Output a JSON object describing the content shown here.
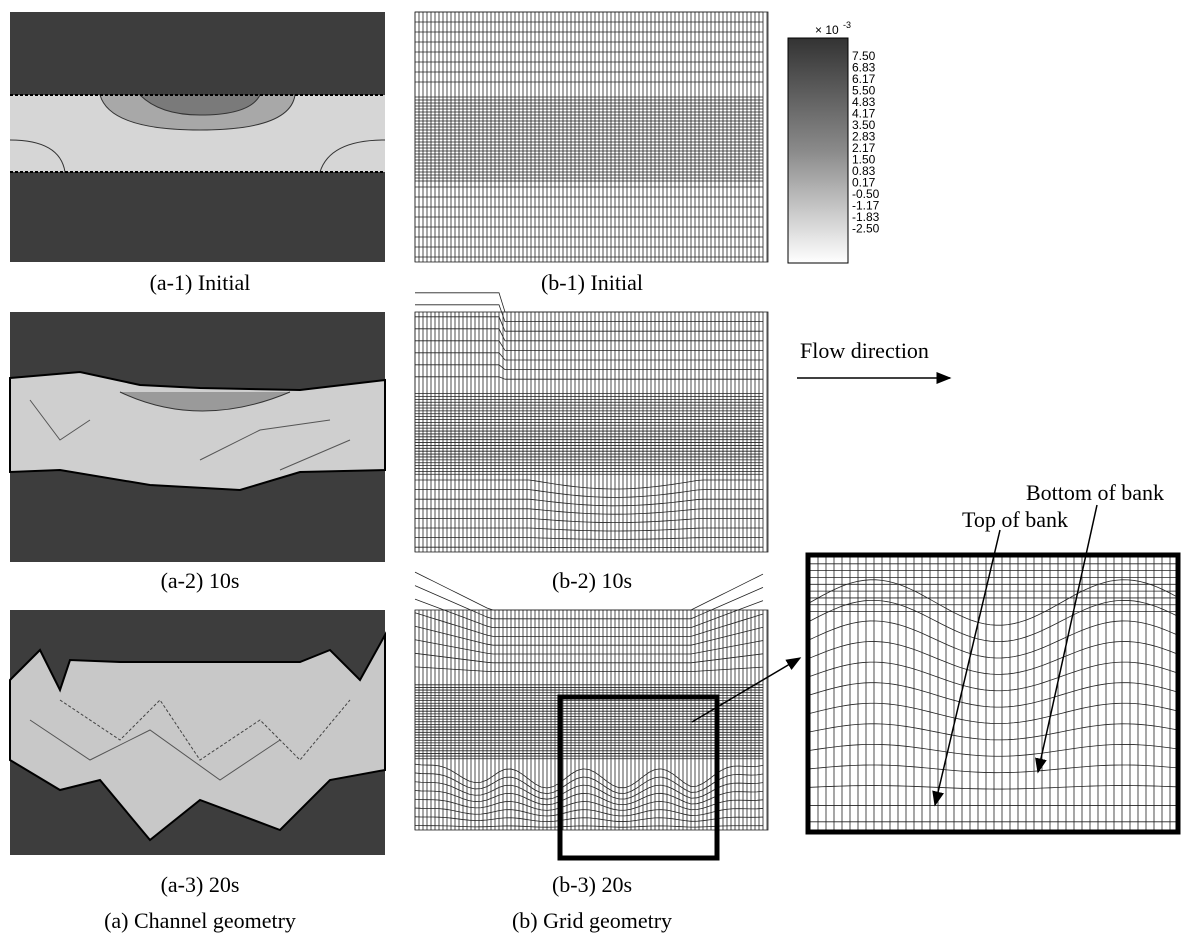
{
  "panels": {
    "a1": "(a-1) Initial",
    "b1": "(b-1) Initial",
    "a2": "(a-2) 10s",
    "b2": "(b-2) 10s",
    "a3": "(a-3) 20s",
    "b3": "(b-3) 20s"
  },
  "group_captions": {
    "a": "(a) Channel geometry",
    "b": "(b) Grid geometry"
  },
  "colorbar": {
    "multiplier": "× 10",
    "exponent": "-3",
    "labels": [
      "7.50",
      "6.83",
      "6.17",
      "5.50",
      "4.83",
      "4.17",
      "3.50",
      "2.83",
      "2.17",
      "1.50",
      "0.83",
      "0.17",
      "-0.50",
      "-1.17",
      "-1.83",
      "-2.50"
    ]
  },
  "annotations": {
    "flow": "Flow direction",
    "top": "Top of bank",
    "bottom": "Bottom of bank"
  }
}
